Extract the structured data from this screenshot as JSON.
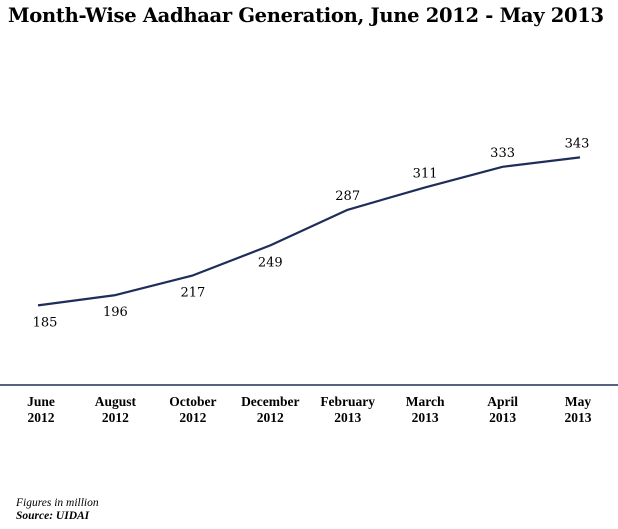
{
  "title": "Month-Wise Aadhaar Generation, June 2012 - May 2013",
  "colors": {
    "line": "#1f2d5a",
    "axis": "#1f2d5a",
    "text": "#000000"
  },
  "footer": {
    "note": "Figures in million",
    "source": "Source: UIDAI"
  },
  "chart_data": {
    "type": "line",
    "title": "Month-Wise Aadhaar Generation, June 2012 - May 2013",
    "xlabel": "",
    "ylabel": "",
    "grid": false,
    "legend": "none",
    "ylim": [
      100,
      400
    ],
    "categories": [
      [
        "June",
        "2012"
      ],
      [
        "August",
        "2012"
      ],
      [
        "October",
        "2012"
      ],
      [
        "December",
        "2012"
      ],
      [
        "February",
        "2013"
      ],
      [
        "March",
        "2013"
      ],
      [
        "April",
        "2013"
      ],
      [
        "May",
        "2013"
      ]
    ],
    "series": [
      {
        "values": [
          185,
          196,
          217,
          249,
          287,
          311,
          333,
          343
        ]
      }
    ],
    "data_labels": [
      "185",
      "196",
      "217",
      "249",
      "287",
      "311",
      "333",
      "343"
    ]
  }
}
